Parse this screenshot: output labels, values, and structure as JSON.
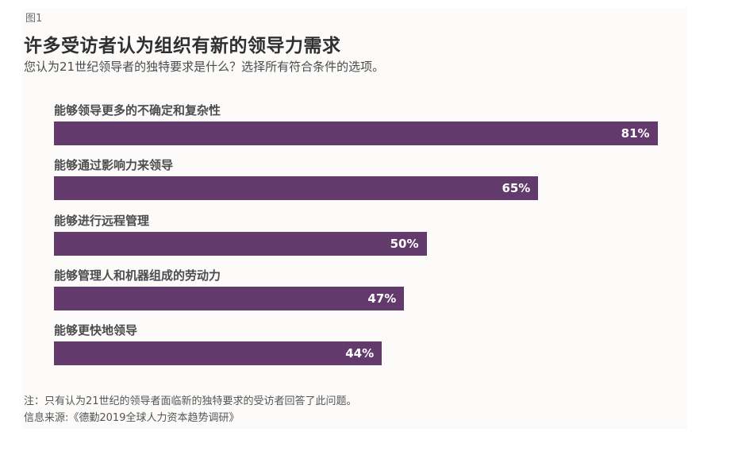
{
  "figure_label": "图1",
  "chart_data": {
    "type": "bar",
    "orientation": "horizontal",
    "title": "许多受访者认为组织有新的领导力需求",
    "subtitle": "您认为21世纪领导者的独特要求是什么？选择所有符合条件的选项。",
    "categories": [
      "能够领导更多的不确定和复杂性",
      "能够通过影响力来领导",
      "能够进行远程管理",
      "能够管理人和机器组成的劳动力",
      "能够更快地领导"
    ],
    "values": [
      81,
      65,
      50,
      47,
      44
    ],
    "value_labels": [
      "81%",
      "65%",
      "50%",
      "47%",
      "44%"
    ],
    "unit": "%",
    "xlim": [
      0,
      100
    ],
    "bar_color": "#623b6c",
    "grid": false
  },
  "footer": {
    "note": "注：只有认为21世纪的领导者面临新的独特要求的受访者回答了此问题。",
    "source": "信息来源:《德勤2019全球人力资本趋势调研》"
  }
}
